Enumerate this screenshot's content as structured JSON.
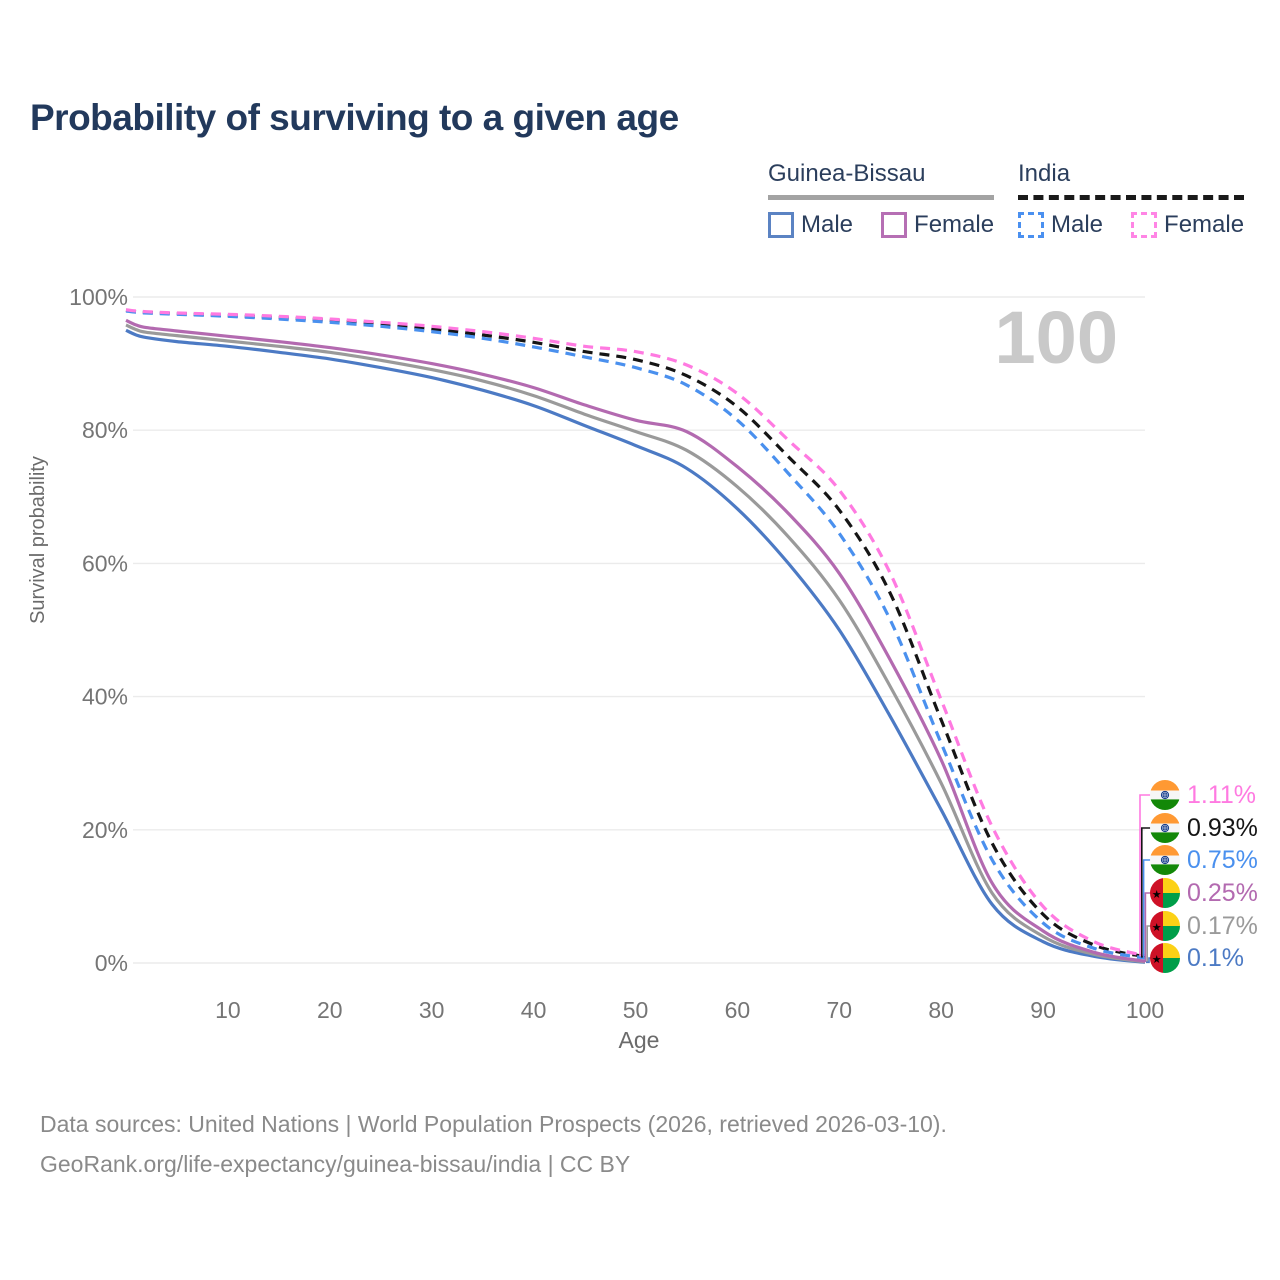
{
  "page": {
    "title": "Probability of surviving to a given age",
    "watermark_age": "100",
    "footer": {
      "line1": "Data sources: United Nations | World Population Prospects (2026, retrieved 2026-03-10).",
      "line2": "GeoRank.org/life-expectancy/guinea-bissau/india | CC BY"
    }
  },
  "legend": {
    "groups": [
      {
        "name": "Guinea-Bissau",
        "line_style": "solid",
        "line_color": "#a3a3a3",
        "items": [
          {
            "label": "Male",
            "color": "#5b83c3",
            "dashed": false
          },
          {
            "label": "Female",
            "color": "#b66fb4",
            "dashed": false
          }
        ]
      },
      {
        "name": "India",
        "line_style": "dashed",
        "line_color": "#1a1a1a",
        "items": [
          {
            "label": "Male",
            "color": "#4a90f0",
            "dashed": true
          },
          {
            "label": "Female",
            "color": "#ff85e5",
            "dashed": true
          }
        ]
      }
    ]
  },
  "chart_data": {
    "type": "line",
    "title": "Probability of surviving to a given age",
    "xlabel": "Age",
    "ylabel": "Survival probability",
    "xlim": [
      0,
      100
    ],
    "ylim": [
      0,
      100
    ],
    "grid": true,
    "x_ticks": [
      10,
      20,
      30,
      40,
      50,
      60,
      70,
      80,
      90,
      100
    ],
    "y_ticks": [
      "0%",
      "20%",
      "40%",
      "60%",
      "80%",
      "100%"
    ],
    "y_tick_values": [
      0,
      20,
      40,
      60,
      80,
      100
    ],
    "x": [
      0,
      1,
      2,
      5,
      10,
      15,
      20,
      25,
      30,
      35,
      40,
      45,
      50,
      55,
      60,
      65,
      70,
      75,
      80,
      85,
      90,
      95,
      100
    ],
    "series": [
      {
        "name": "Guinea-Bissau Male",
        "country": "Guinea-Bissau",
        "sex": "Male",
        "color": "#4c7ac4",
        "dash": "solid",
        "end_label": "0.1%",
        "values": [
          95.0,
          94.3,
          93.9,
          93.3,
          92.6,
          91.7,
          90.7,
          89.4,
          87.9,
          86.0,
          83.7,
          80.7,
          77.7,
          74.3,
          68.2,
          60.0,
          50.0,
          37.0,
          23.0,
          8.8,
          3.2,
          1.0,
          0.1
        ]
      },
      {
        "name": "Guinea-Bissau All",
        "country": "Guinea-Bissau",
        "sex": "Both",
        "color": "#9a9a9a",
        "dash": "solid",
        "end_label": "0.17%",
        "values": [
          95.8,
          95.1,
          94.7,
          94.2,
          93.4,
          92.6,
          91.7,
          90.5,
          89.1,
          87.4,
          85.2,
          82.4,
          79.8,
          77.0,
          71.5,
          64.0,
          54.5,
          41.5,
          27.0,
          10.5,
          4.0,
          1.3,
          0.17
        ]
      },
      {
        "name": "Guinea-Bissau Female",
        "country": "Guinea-Bissau",
        "sex": "Female",
        "color": "#b36ab0",
        "dash": "solid",
        "end_label": "0.25%",
        "values": [
          96.5,
          95.8,
          95.4,
          94.9,
          94.1,
          93.3,
          92.4,
          91.3,
          90.0,
          88.4,
          86.4,
          83.8,
          81.5,
          79.8,
          74.5,
          67.5,
          58.5,
          45.5,
          30.5,
          12.0,
          4.8,
          1.6,
          0.25
        ]
      },
      {
        "name": "India All",
        "country": "India",
        "sex": "Both",
        "color": "#151515",
        "dash": "dashed",
        "end_label": "0.93%",
        "values": [
          98.0,
          97.8,
          97.7,
          97.5,
          97.2,
          96.9,
          96.5,
          95.9,
          95.2,
          94.3,
          93.2,
          91.8,
          90.6,
          88.2,
          83.5,
          76.0,
          68.0,
          55.5,
          36.5,
          18.0,
          7.3,
          2.7,
          0.93
        ]
      },
      {
        "name": "India Male",
        "country": "India",
        "sex": "Male",
        "color": "#4a90ee",
        "dash": "dashed",
        "end_label": "0.75%",
        "values": [
          97.9,
          97.7,
          97.6,
          97.4,
          97.1,
          96.7,
          96.2,
          95.6,
          94.8,
          93.8,
          92.5,
          91.0,
          89.4,
          86.8,
          81.5,
          73.5,
          64.5,
          51.5,
          33.0,
          15.5,
          6.0,
          2.2,
          0.75
        ]
      },
      {
        "name": "India Female",
        "country": "India",
        "sex": "Female",
        "color": "#ff7ae1",
        "dash": "dashed",
        "end_label": "1.11%",
        "values": [
          98.1,
          97.9,
          97.8,
          97.6,
          97.4,
          97.1,
          96.7,
          96.2,
          95.6,
          94.8,
          93.8,
          92.6,
          91.8,
          89.8,
          85.5,
          78.5,
          71.0,
          58.5,
          39.5,
          20.5,
          8.5,
          3.2,
          1.11
        ]
      }
    ],
    "end_labels": [
      {
        "label": "1.11%",
        "color": "#ff7ae1",
        "flag": "india",
        "series": "India Female",
        "end_value": 1.11
      },
      {
        "label": "0.93%",
        "color": "#151515",
        "flag": "india",
        "series": "India All",
        "end_value": 0.93
      },
      {
        "label": "0.75%",
        "color": "#4a90ee",
        "flag": "india",
        "series": "India Male",
        "end_value": 0.75
      },
      {
        "label": "0.25%",
        "color": "#b36ab0",
        "flag": "guinea-bissau",
        "series": "Guinea-Bissau Female",
        "end_value": 0.25
      },
      {
        "label": "0.17%",
        "color": "#9a9a9a",
        "flag": "guinea-bissau",
        "series": "Guinea-Bissau All",
        "end_value": 0.17
      },
      {
        "label": "0.1%",
        "color": "#4c7ac4",
        "flag": "guinea-bissau",
        "series": "Guinea-Bissau Male",
        "end_value": 0.1
      }
    ]
  }
}
